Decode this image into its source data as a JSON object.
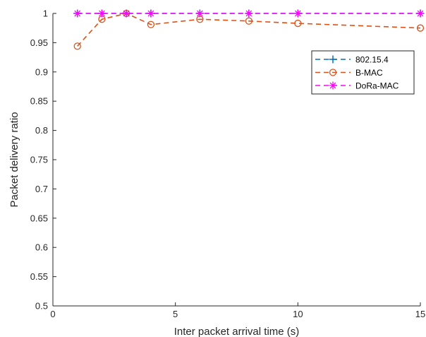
{
  "chart_data": {
    "type": "line",
    "xlabel": "Inter packet arrival time (s)",
    "ylabel": "Packet delivery ratio",
    "xlim": [
      0,
      15
    ],
    "ylim": [
      0.5,
      1
    ],
    "xticks": [
      0,
      5,
      10,
      15
    ],
    "xtick_labels": [
      "0",
      "5",
      "10",
      "15"
    ],
    "yticks": [
      0.5,
      0.55,
      0.6,
      0.65,
      0.7,
      0.75,
      0.8,
      0.85,
      0.9,
      0.95,
      1
    ],
    "ytick_labels": [
      "0.5",
      "0.55",
      "0.6",
      "0.65",
      "0.7",
      "0.75",
      "0.8",
      "0.85",
      "0.9",
      "0.95",
      "1"
    ],
    "grid": false,
    "legend_position": "top-right",
    "series": [
      {
        "name": "802.15.4",
        "marker": "plus",
        "line": "dashed",
        "color": "#0072bd",
        "x": [
          1,
          2,
          3,
          4,
          6,
          8,
          10,
          15
        ],
        "y": [
          1,
          1,
          1,
          1,
          1,
          1,
          1,
          1
        ]
      },
      {
        "name": "B-MAC",
        "marker": "circle",
        "line": "dashed",
        "color": "#d95319",
        "x": [
          1,
          2,
          3,
          4,
          6,
          8,
          10,
          15
        ],
        "y": [
          0.944,
          0.99,
          1.0,
          0.981,
          0.99,
          0.987,
          0.983,
          0.975
        ]
      },
      {
        "name": "DoRa-MAC",
        "marker": "asterisk",
        "line": "dashed",
        "color": "#ff00ff",
        "x": [
          1,
          2,
          3,
          4,
          6,
          8,
          10,
          15
        ],
        "y": [
          1,
          1,
          1,
          1,
          1,
          1,
          1,
          1
        ]
      }
    ]
  }
}
